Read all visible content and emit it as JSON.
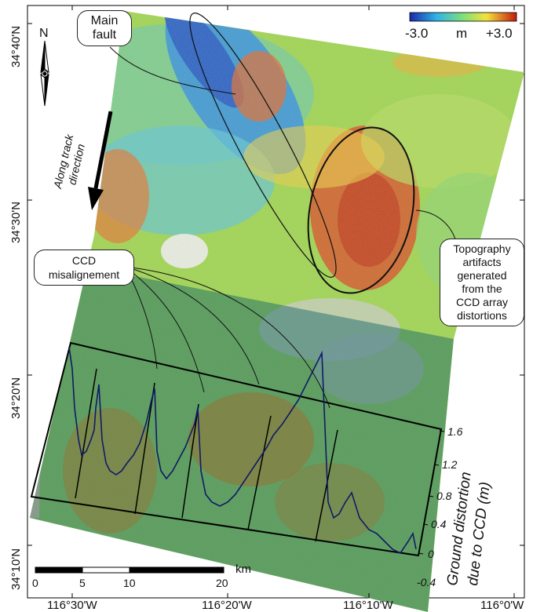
{
  "colorbar": {
    "min_label": "-3.0",
    "unit": "m",
    "max_label": "+3.0",
    "low_color": "#1a2aa8",
    "mid_color": "#7fe07a",
    "high_color": "#c41a10"
  },
  "north_arrow": {
    "label": "N"
  },
  "annotations": {
    "main_fault": "Main\nfault",
    "along_track": "Along track\ndirection",
    "ccd_misalignment": "CCD\nmisalignement",
    "topography": "Topography\nartifacts\ngenerated\nfrom the\nCCD array\ndistortions"
  },
  "latitude_labels": [
    "34°40'N",
    "34°30'N",
    "34°20'N",
    "34°10'N"
  ],
  "longitude_labels": [
    "116°30'W",
    "116°20'W",
    "116°10'W",
    "116°0'W"
  ],
  "scale_bar": {
    "unit": "km",
    "ticks": [
      "0",
      "5",
      "10",
      "20"
    ]
  },
  "profile_axis": {
    "label_line1": "Ground distortion",
    "label_line2": "due to CCD (m)",
    "ticks": [
      "1.6",
      "1.2",
      "0.8",
      "0.4",
      "0",
      "-0.4"
    ]
  }
}
